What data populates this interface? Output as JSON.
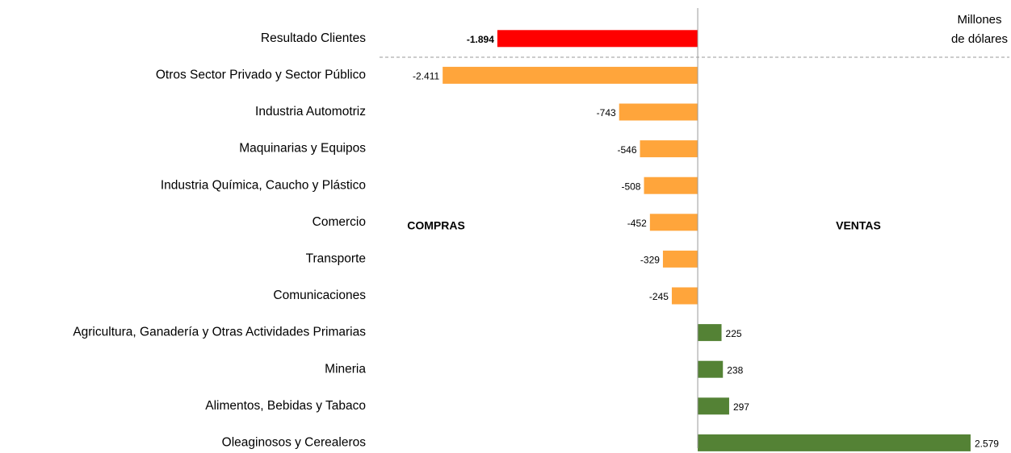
{
  "chart_data": {
    "type": "bar",
    "orientation": "horizontal",
    "categories": [
      "Resultado Clientes",
      "Otros Sector Privado y Sector Público",
      "Industria Automotriz",
      "Maquinarias y Equipos",
      "Industria Química, Caucho y Plástico",
      "Comercio",
      "Transporte",
      "Comunicaciones",
      "Agricultura, Ganadería y Otras Actividades Primarias",
      "Mineria",
      "Alimentos, Bebidas y Tabaco",
      "Oleaginosos y Cerealeros"
    ],
    "values": [
      -1894,
      -2411,
      -743,
      -546,
      -508,
      -452,
      -329,
      -245,
      225,
      238,
      297,
      2579
    ],
    "value_labels": [
      "-1.894",
      "-2.411",
      "-743",
      "-546",
      "-508",
      "-452",
      "-329",
      "-245",
      "225",
      "238",
      "297",
      "2.579"
    ],
    "colors": [
      "#ff0000",
      "#ffa53b",
      "#ffa53b",
      "#ffa53b",
      "#ffa53b",
      "#ffa53b",
      "#ffa53b",
      "#ffa53b",
      "#548235",
      "#548235",
      "#548235",
      "#548235"
    ],
    "xlim": [
      -3000,
      2900
    ],
    "annotations": [
      "COMPRAS",
      "VENTAS"
    ],
    "unit_label": [
      "Millones",
      "de dólares"
    ]
  }
}
